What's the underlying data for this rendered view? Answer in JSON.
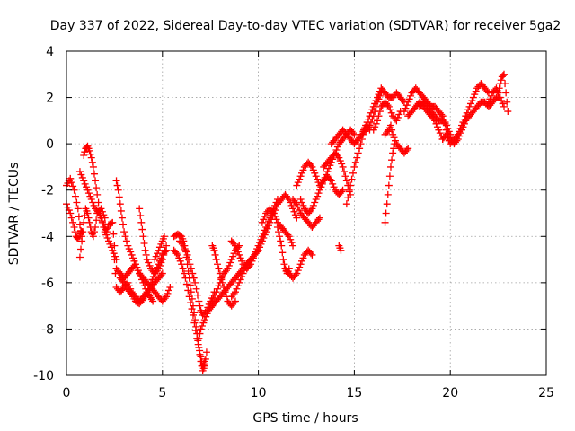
{
  "chart_data": {
    "type": "scatter",
    "title": "Day 337 of 2022, Sidereal Day-to-day VTEC variation (SDTVAR) for receiver 5ga2",
    "xlabel": "GPS time / hours",
    "ylabel": "SDTVAR / TECUs",
    "xlim": [
      0,
      25
    ],
    "ylim": [
      -10,
      4
    ],
    "xticks": [
      "0",
      "5",
      "10",
      "15",
      "20",
      "25"
    ],
    "yticks": [
      "-10",
      "-8",
      "-6",
      "-4",
      "-2",
      "0",
      "2",
      "4"
    ],
    "grid": true,
    "marker": "plus",
    "color": "#ff0000",
    "series": [
      {
        "x": [
          0.0,
          0.2,
          0.4,
          0.6,
          0.7,
          0.8
        ],
        "y": [
          -1.8,
          -1.5,
          -2.0,
          -2.8,
          -3.5,
          -4.0
        ]
      },
      {
        "x": [
          0.0,
          0.2,
          0.4,
          0.5,
          0.6,
          0.8
        ],
        "y": [
          -2.6,
          -3.0,
          -3.6,
          -4.0,
          -4.1,
          -3.8
        ]
      },
      {
        "x": [
          0.7,
          0.8,
          0.9,
          1.0,
          1.1,
          1.2,
          1.3,
          1.4,
          1.5,
          1.6,
          1.8,
          2.0
        ],
        "y": [
          -4.9,
          -4.2,
          -3.4,
          -2.8,
          -3.0,
          -3.4,
          -3.8,
          -4.0,
          -3.6,
          -3.0,
          -2.8,
          -3.2
        ]
      },
      {
        "x": [
          0.9,
          1.0,
          1.1,
          1.2,
          1.3,
          1.4,
          1.5,
          1.6,
          1.8,
          2.0,
          2.1,
          2.2,
          2.4,
          2.5
        ],
        "y": [
          -0.5,
          -0.2,
          -0.1,
          -0.3,
          -0.6,
          -1.0,
          -1.6,
          -2.2,
          -3.2,
          -3.6,
          -3.8,
          -3.5,
          -3.4,
          -4.4
        ]
      },
      {
        "x": [
          0.7,
          0.9,
          1.1,
          1.3,
          1.5,
          1.7,
          1.8,
          2.0,
          2.2,
          2.4,
          2.6
        ],
        "y": [
          -1.2,
          -1.6,
          -2.0,
          -2.4,
          -2.8,
          -3.0,
          -3.2,
          -3.8,
          -4.2,
          -4.6,
          -5.0
        ]
      },
      {
        "x": [
          2.6,
          2.7,
          2.8,
          2.9,
          3.0,
          3.2,
          3.4,
          3.6,
          3.8,
          4.0,
          4.2,
          4.5
        ],
        "y": [
          -1.6,
          -2.0,
          -2.6,
          -3.2,
          -3.8,
          -4.4,
          -4.8,
          -5.2,
          -5.6,
          -6.0,
          -6.4,
          -6.8
        ]
      },
      {
        "x": [
          2.5,
          2.6,
          2.8,
          3.0,
          3.2,
          3.4,
          3.6,
          3.8,
          4.0,
          4.2,
          4.4,
          4.6,
          4.8,
          5.0
        ],
        "y": [
          -5.0,
          -6.2,
          -6.4,
          -6.2,
          -6.0,
          -6.4,
          -6.6,
          -6.8,
          -6.6,
          -6.4,
          -6.2,
          -6.0,
          -5.8,
          -5.6
        ]
      },
      {
        "x": [
          2.6,
          2.8,
          3.0,
          3.2,
          3.4,
          3.6,
          3.8,
          4.0,
          4.2,
          4.4,
          4.6,
          4.8,
          5.0,
          5.2,
          5.4
        ],
        "y": [
          -5.4,
          -5.6,
          -5.8,
          -5.6,
          -5.4,
          -5.2,
          -5.6,
          -5.8,
          -6.0,
          -6.2,
          -6.4,
          -6.6,
          -6.8,
          -6.6,
          -6.2
        ]
      },
      {
        "x": [
          2.8,
          3.0,
          3.2,
          3.4,
          3.6,
          3.8,
          4.0,
          4.2,
          4.4,
          4.6,
          4.8,
          5.0,
          5.2
        ],
        "y": [
          -5.8,
          -6.0,
          -6.3,
          -6.5,
          -6.8,
          -6.9,
          -6.7,
          -6.4,
          -6.0,
          -5.6,
          -5.2,
          -4.8,
          -4.6
        ]
      },
      {
        "x": [
          3.8,
          3.9,
          4.0,
          4.1,
          4.2,
          4.4,
          4.6,
          4.8,
          5.0,
          5.2
        ],
        "y": [
          -2.8,
          -3.4,
          -4.0,
          -4.6,
          -5.0,
          -5.4,
          -5.6,
          -5.4,
          -5.0,
          -4.4
        ]
      },
      {
        "x": [
          4.6,
          4.8,
          5.0,
          5.1
        ],
        "y": [
          -5.0,
          -4.6,
          -4.2,
          -4.0
        ]
      },
      {
        "x": [
          5.6,
          5.8,
          6.0,
          6.1,
          6.2,
          6.3,
          6.4,
          6.5,
          6.6,
          6.7,
          6.8,
          6.9,
          7.0,
          7.1,
          7.2,
          7.3
        ],
        "y": [
          -4.0,
          -3.9,
          -4.0,
          -4.2,
          -4.6,
          -5.2,
          -5.8,
          -6.4,
          -7.0,
          -7.6,
          -8.2,
          -8.8,
          -9.4,
          -9.8,
          -9.6,
          -9.0
        ]
      },
      {
        "x": [
          5.6,
          5.8,
          6.0,
          6.2,
          6.4,
          6.6,
          6.8,
          7.0,
          7.1,
          7.2
        ],
        "y": [
          -4.6,
          -4.8,
          -5.2,
          -5.8,
          -6.6,
          -7.4,
          -8.4,
          -9.2,
          -9.6,
          -9.4
        ]
      },
      {
        "x": [
          5.9,
          6.1,
          6.3,
          6.5,
          6.7,
          6.9,
          7.0,
          7.1,
          7.3,
          7.5,
          7.7
        ],
        "y": [
          -4.2,
          -4.4,
          -4.8,
          -5.4,
          -6.0,
          -6.8,
          -7.2,
          -7.4,
          -7.2,
          -6.8,
          -6.4
        ]
      },
      {
        "x": [
          6.9,
          7.0,
          7.2,
          7.4,
          7.6,
          7.8,
          8.0,
          8.2,
          8.4,
          8.6,
          8.8,
          9.0
        ],
        "y": [
          -8.4,
          -8.0,
          -7.6,
          -7.2,
          -6.8,
          -6.4,
          -6.0,
          -5.6,
          -5.4,
          -5.0,
          -4.6,
          -4.4
        ]
      },
      {
        "x": [
          7.4,
          7.6,
          7.8,
          8.0,
          8.2,
          8.4,
          8.6,
          8.8,
          9.0,
          9.2,
          9.4,
          9.6
        ],
        "y": [
          -7.2,
          -7.0,
          -6.8,
          -6.6,
          -6.4,
          -6.2,
          -6.0,
          -5.8,
          -5.6,
          -5.4,
          -5.2,
          -5.0
        ]
      },
      {
        "x": [
          7.6,
          7.7,
          7.8,
          8.0,
          8.2,
          8.4,
          8.6,
          8.8
        ],
        "y": [
          -4.4,
          -4.6,
          -5.0,
          -5.6,
          -6.2,
          -6.8,
          -7.0,
          -6.8
        ]
      },
      {
        "x": [
          8.6,
          8.8,
          9.0,
          9.2,
          9.4,
          9.6,
          9.8,
          10.0,
          10.2,
          10.4,
          10.6,
          10.8,
          11.0
        ],
        "y": [
          -4.2,
          -4.4,
          -4.8,
          -5.2,
          -5.4,
          -5.2,
          -4.8,
          -4.4,
          -4.0,
          -3.6,
          -3.2,
          -2.8,
          -2.4
        ]
      },
      {
        "x": [
          8.6,
          8.8,
          9.0,
          9.2,
          9.4,
          9.6,
          9.8,
          10.0,
          10.2,
          10.4,
          10.6,
          10.8,
          11.0,
          11.2,
          11.4,
          11.6,
          11.8,
          12.0
        ],
        "y": [
          -6.6,
          -6.4,
          -6.0,
          -5.6,
          -5.2,
          -5.0,
          -4.8,
          -4.6,
          -4.2,
          -3.8,
          -3.4,
          -3.0,
          -2.6,
          -2.4,
          -2.2,
          -2.4,
          -2.8,
          -3.2
        ]
      },
      {
        "x": [
          10.2,
          10.4,
          10.6,
          10.8,
          11.0,
          11.2,
          11.4,
          11.6,
          11.8
        ],
        "y": [
          -3.4,
          -3.0,
          -2.8,
          -3.0,
          -3.4,
          -3.6,
          -3.8,
          -4.0,
          -4.4
        ]
      },
      {
        "x": [
          11.0,
          11.1,
          11.2,
          11.3,
          11.4,
          11.5,
          11.6
        ],
        "y": [
          -3.6,
          -4.0,
          -4.4,
          -5.0,
          -5.4,
          -5.6,
          -5.4
        ]
      },
      {
        "x": [
          11.4,
          11.6,
          11.8,
          12.0,
          12.2,
          12.4,
          12.6,
          12.8
        ],
        "y": [
          -5.4,
          -5.6,
          -5.8,
          -5.6,
          -5.2,
          -4.8,
          -4.6,
          -4.8
        ]
      },
      {
        "x": [
          11.8,
          12.0,
          12.2,
          12.4,
          12.6,
          12.8,
          13.0,
          13.2
        ],
        "y": [
          -2.4,
          -2.6,
          -3.0,
          -3.2,
          -3.4,
          -3.6,
          -3.4,
          -3.2
        ]
      },
      {
        "x": [
          12.0,
          12.2,
          12.4,
          12.6,
          12.8,
          13.0,
          13.2,
          13.4,
          13.6,
          13.8,
          14.0,
          14.2,
          14.4,
          14.6,
          14.8,
          15.0
        ],
        "y": [
          -1.8,
          -1.4,
          -1.0,
          -0.8,
          -1.0,
          -1.4,
          -1.8,
          -1.6,
          -1.2,
          -0.8,
          -0.4,
          0.0,
          0.2,
          0.4,
          0.6,
          0.4
        ]
      },
      {
        "x": [
          12.2,
          12.4,
          12.6,
          12.8,
          13.0,
          13.2,
          13.4,
          13.6,
          13.8,
          14.0,
          14.2,
          14.4
        ],
        "y": [
          -2.4,
          -2.8,
          -3.0,
          -2.8,
          -2.4,
          -2.0,
          -1.6,
          -1.4,
          -1.6,
          -2.0,
          -2.2,
          -2.0
        ]
      },
      {
        "x": [
          13.4,
          13.6,
          13.8,
          14.0,
          14.2,
          14.4,
          14.6,
          14.8
        ],
        "y": [
          -1.0,
          -0.8,
          -0.6,
          -0.4,
          -0.6,
          -1.0,
          -1.6,
          -2.2
        ]
      },
      {
        "x": [
          14.2,
          14.3
        ],
        "y": [
          -4.4,
          -4.6
        ]
      },
      {
        "x": [
          13.8,
          14.0,
          14.2,
          14.4,
          14.6,
          14.8,
          15.0,
          15.2,
          15.4,
          15.6,
          15.8,
          16.0,
          16.2,
          16.4
        ],
        "y": [
          0.0,
          0.2,
          0.4,
          0.6,
          0.4,
          0.2,
          0.0,
          0.2,
          0.4,
          0.6,
          0.8,
          1.2,
          1.8,
          2.2
        ]
      },
      {
        "x": [
          14.6,
          14.8,
          15.0,
          15.2,
          15.4,
          15.5,
          15.6,
          15.8
        ],
        "y": [
          -2.6,
          -1.8,
          -1.0,
          -0.4,
          0.2,
          0.6,
          0.8,
          0.6
        ]
      },
      {
        "x": [
          15.4,
          15.6,
          15.8,
          16.0,
          16.2,
          16.4,
          16.6,
          16.8,
          17.0,
          17.2,
          17.4,
          17.6
        ],
        "y": [
          0.4,
          0.8,
          1.2,
          1.6,
          2.0,
          2.4,
          2.2,
          2.0,
          2.0,
          2.2,
          2.0,
          1.8
        ]
      },
      {
        "x": [
          16.0,
          16.2,
          16.4,
          16.6,
          16.8,
          17.0,
          17.2,
          17.4
        ],
        "y": [
          0.6,
          1.0,
          1.6,
          1.8,
          1.6,
          1.2,
          1.0,
          1.4
        ]
      },
      {
        "x": [
          16.6,
          16.8,
          16.9,
          17.0,
          17.2,
          17.4,
          17.6,
          17.8
        ],
        "y": [
          0.4,
          0.6,
          0.8,
          0.4,
          0.0,
          -0.2,
          -0.4,
          -0.2
        ]
      },
      {
        "x": [
          16.6,
          16.7,
          16.8,
          16.9,
          17.0,
          17.1
        ],
        "y": [
          -3.4,
          -2.6,
          -1.8,
          -1.0,
          -0.4,
          0.0
        ]
      },
      {
        "x": [
          17.6,
          17.8,
          18.0,
          18.2,
          18.4,
          18.6,
          18.8,
          19.0,
          19.2,
          19.4,
          19.6,
          19.8
        ],
        "y": [
          1.4,
          1.8,
          2.2,
          2.4,
          2.2,
          2.0,
          1.8,
          1.6,
          1.6,
          1.4,
          1.2,
          0.8
        ]
      },
      {
        "x": [
          17.8,
          18.0,
          18.2,
          18.4,
          18.6,
          18.8,
          19.0,
          19.2,
          19.4,
          19.6
        ],
        "y": [
          1.2,
          1.4,
          1.6,
          1.8,
          1.6,
          1.4,
          1.2,
          1.0,
          0.6,
          0.2
        ]
      },
      {
        "x": [
          18.4,
          18.6,
          18.8,
          19.0,
          19.2,
          19.4,
          19.6,
          19.8,
          20.0
        ],
        "y": [
          1.6,
          1.8,
          1.6,
          1.4,
          1.2,
          1.0,
          1.0,
          0.8,
          0.4
        ]
      },
      {
        "x": [
          19.6,
          19.8,
          20.0,
          20.2,
          20.4,
          20.6,
          20.8,
          21.0,
          21.2,
          21.4,
          21.6,
          21.8,
          22.0
        ],
        "y": [
          0.2,
          0.4,
          0.0,
          0.2,
          0.4,
          0.8,
          1.2,
          1.6,
          2.0,
          2.4,
          2.6,
          2.4,
          2.2
        ]
      },
      {
        "x": [
          19.8,
          20.0,
          20.2,
          20.4,
          20.6,
          20.8,
          21.0,
          21.2,
          21.4,
          21.6,
          21.8,
          22.0,
          22.2,
          22.4,
          22.6,
          22.8
        ],
        "y": [
          0.6,
          0.2,
          0.0,
          0.2,
          0.6,
          1.0,
          1.2,
          1.4,
          1.6,
          1.8,
          1.8,
          1.6,
          1.8,
          2.0,
          2.0,
          1.6
        ]
      },
      {
        "x": [
          22.0,
          22.2,
          22.4,
          22.5,
          22.6,
          22.7,
          22.8,
          22.9,
          23.0
        ],
        "y": [
          1.8,
          2.2,
          2.4,
          2.2,
          2.6,
          2.9,
          3.0,
          2.2,
          1.4
        ]
      }
    ]
  }
}
